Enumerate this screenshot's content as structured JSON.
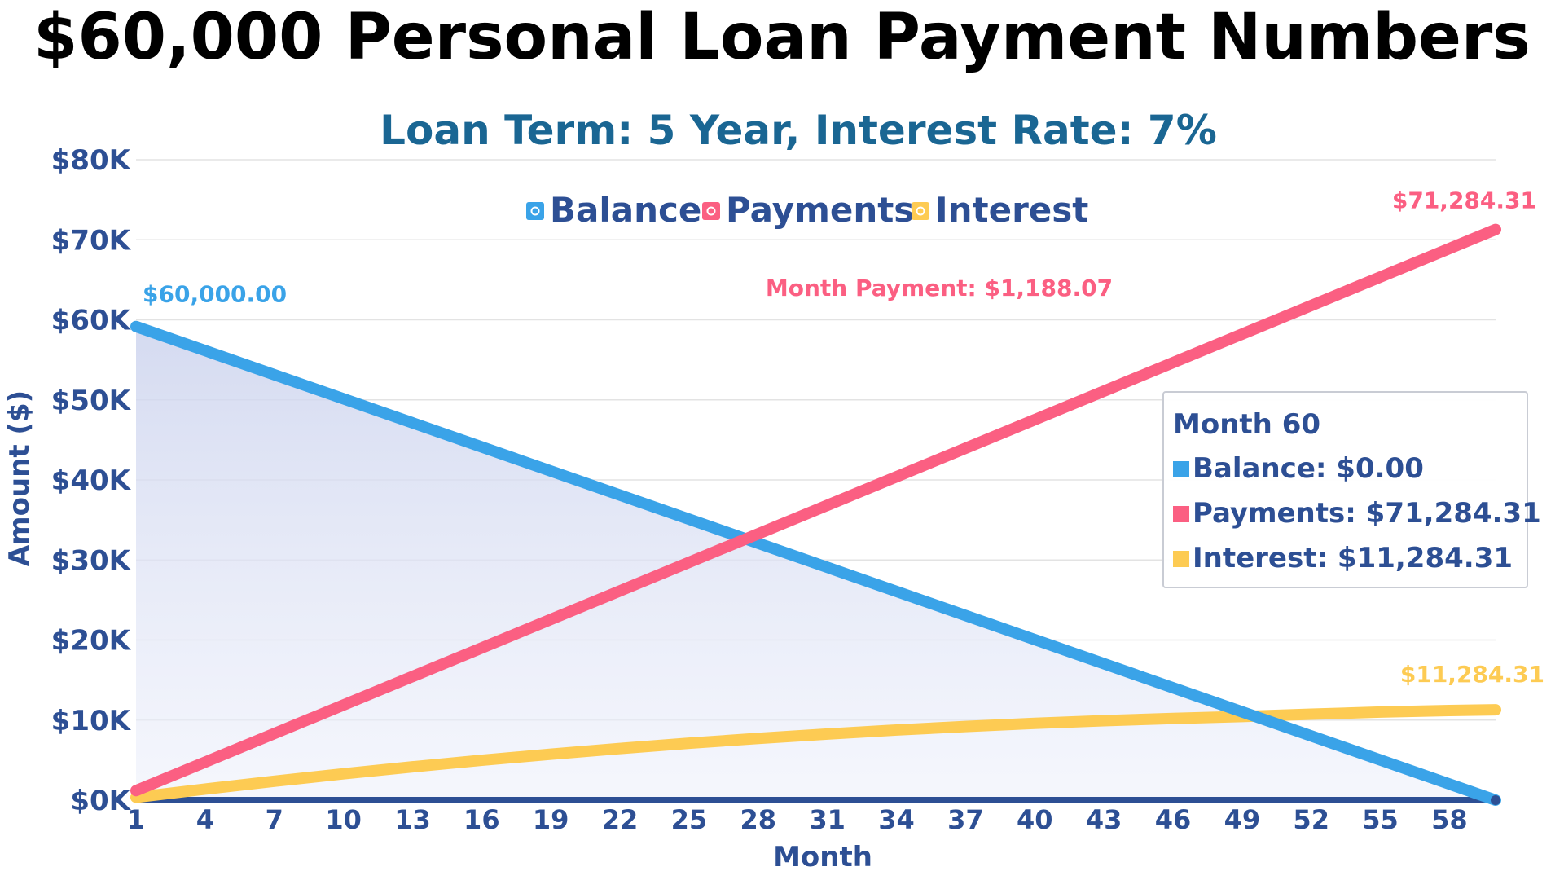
{
  "title": "$60,000 Personal Loan Payment Numbers",
  "subtitle": "Loan Term: 5 Year, Interest Rate: 7%",
  "annotation": "Month Payment: $1,188.07",
  "colors": {
    "balance": "#3aa3e8",
    "payments": "#fb5f82",
    "interest": "#fdcb53",
    "axis": "#2d4f94",
    "fill_top": "#cdd4ee"
  },
  "chart_data": {
    "type": "line",
    "xlabel": "Month",
    "ylabel": "Amount ($)",
    "xlim": [
      1,
      60
    ],
    "ylim": [
      0,
      80000
    ],
    "x_ticks": [
      "1",
      "4",
      "7",
      "10",
      "13",
      "16",
      "19",
      "22",
      "25",
      "28",
      "31",
      "34",
      "37",
      "40",
      "43",
      "46",
      "49",
      "52",
      "55",
      "58"
    ],
    "y_ticks": [
      "$0K",
      "$10K",
      "$20K",
      "$30K",
      "$40K",
      "$50K",
      "$60K",
      "$70K",
      "$80K"
    ],
    "grid": true,
    "legend": "top-center",
    "legend_items": [
      "Balance",
      "Payments",
      "Interest"
    ],
    "series": [
      {
        "name": "Balance",
        "x": [
          1,
          60
        ],
        "values": [
          59161.93,
          0
        ],
        "start_label": "$60,000.00"
      },
      {
        "name": "Payments",
        "x": [
          1,
          60
        ],
        "values": [
          1188.07,
          71284.31
        ],
        "end_label": "$71,284.31"
      },
      {
        "name": "Interest",
        "x": [
          1,
          4,
          7,
          10,
          13,
          16,
          19,
          22,
          25,
          28,
          31,
          34,
          37,
          40,
          43,
          46,
          49,
          52,
          55,
          58,
          60
        ],
        "values": [
          350,
          1380,
          2360,
          3290,
          4160,
          4980,
          5740,
          6450,
          7110,
          7710,
          8260,
          8760,
          9200,
          9590,
          9920,
          10200,
          10440,
          10740,
          11000,
          11200,
          11284.31
        ],
        "end_label": "$11,284.31"
      }
    ],
    "tooltip": {
      "title": "Month 60",
      "rows": [
        "Balance: $0.00",
        "Payments: $71,284.31",
        "Interest: $11,284.31"
      ]
    }
  }
}
